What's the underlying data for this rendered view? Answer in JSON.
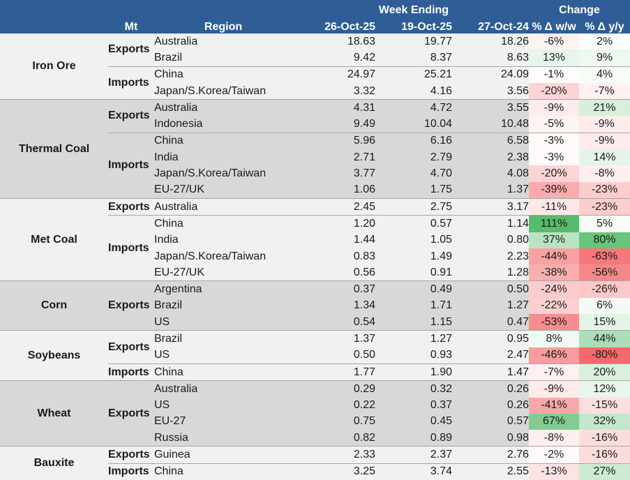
{
  "header": {
    "group_week": "Week Ending",
    "group_change": "Change",
    "unit": "Mt",
    "region": "Region",
    "dates": [
      "26-Oct-25",
      "19-Oct-25",
      "27-Oct-24"
    ],
    "wow": "% Δ w/w",
    "yoy": "% Δ y/y"
  },
  "colors": {
    "header_bg": "#2f5e96",
    "band_light": "#f1f1f1",
    "band_dark": "#d8d8d8",
    "positive_max": "#57bb6b",
    "negative_max": "#f4696b"
  },
  "commodities": [
    {
      "name": "Iron Ore",
      "groups": [
        {
          "direction": "Exports",
          "rows": [
            {
              "region": "Australia",
              "v": [
                "18.63",
                "19.77",
                "18.26"
              ],
              "wow": "-6%",
              "yoy": "2%"
            },
            {
              "region": "Brazil",
              "v": [
                "9.42",
                "8.37",
                "8.63"
              ],
              "wow": "13%",
              "yoy": "9%"
            }
          ]
        },
        {
          "direction": "Imports",
          "rows": [
            {
              "region": "China",
              "v": [
                "24.97",
                "25.21",
                "24.09"
              ],
              "wow": "-1%",
              "yoy": "4%"
            },
            {
              "region": "Japan/S.Korea/Taiwan",
              "v": [
                "3.32",
                "4.16",
                "3.56"
              ],
              "wow": "-20%",
              "yoy": "-7%"
            }
          ]
        }
      ]
    },
    {
      "name": "Thermal Coal",
      "groups": [
        {
          "direction": "Exports",
          "rows": [
            {
              "region": "Australia",
              "v": [
                "4.31",
                "4.72",
                "3.55"
              ],
              "wow": "-9%",
              "yoy": "21%"
            },
            {
              "region": "Indonesia",
              "v": [
                "9.49",
                "10.04",
                "10.48"
              ],
              "wow": "-5%",
              "yoy": "-9%"
            }
          ]
        },
        {
          "direction": "Imports",
          "rows": [
            {
              "region": "China",
              "v": [
                "5.96",
                "6.16",
                "6.58"
              ],
              "wow": "-3%",
              "yoy": "-9%"
            },
            {
              "region": "India",
              "v": [
                "2.71",
                "2.79",
                "2.38"
              ],
              "wow": "-3%",
              "yoy": "14%"
            },
            {
              "region": "Japan/S.Korea/Taiwan",
              "v": [
                "3.77",
                "4.70",
                "4.08"
              ],
              "wow": "-20%",
              "yoy": "-8%"
            },
            {
              "region": "EU-27/UK",
              "v": [
                "1.06",
                "1.75",
                "1.37"
              ],
              "wow": "-39%",
              "yoy": "-23%"
            }
          ]
        }
      ]
    },
    {
      "name": "Met Coal",
      "groups": [
        {
          "direction": "Exports",
          "rows": [
            {
              "region": "Australia",
              "v": [
                "2.45",
                "2.75",
                "3.17"
              ],
              "wow": "-11%",
              "yoy": "-23%"
            }
          ]
        },
        {
          "direction": "Imports",
          "rows": [
            {
              "region": "China",
              "v": [
                "1.20",
                "0.57",
                "1.14"
              ],
              "wow": "111%",
              "yoy": "5%"
            },
            {
              "region": "India",
              "v": [
                "1.44",
                "1.05",
                "0.80"
              ],
              "wow": "37%",
              "yoy": "80%"
            },
            {
              "region": "Japan/S.Korea/Taiwan",
              "v": [
                "0.83",
                "1.49",
                "2.23"
              ],
              "wow": "-44%",
              "yoy": "-63%"
            },
            {
              "region": "EU-27/UK",
              "v": [
                "0.56",
                "0.91",
                "1.28"
              ],
              "wow": "-38%",
              "yoy": "-56%"
            }
          ]
        }
      ]
    },
    {
      "name": "Corn",
      "groups": [
        {
          "direction": "Exports",
          "rows": [
            {
              "region": "Argentina",
              "v": [
                "0.37",
                "0.49",
                "0.50"
              ],
              "wow": "-24%",
              "yoy": "-26%"
            },
            {
              "region": "Brazil",
              "v": [
                "1.34",
                "1.71",
                "1.27"
              ],
              "wow": "-22%",
              "yoy": "6%"
            },
            {
              "region": "US",
              "v": [
                "0.54",
                "1.15",
                "0.47"
              ],
              "wow": "-53%",
              "yoy": "15%"
            }
          ]
        }
      ]
    },
    {
      "name": "Soybeans",
      "groups": [
        {
          "direction": "Exports",
          "rows": [
            {
              "region": "Brazil",
              "v": [
                "1.37",
                "1.27",
                "0.95"
              ],
              "wow": "8%",
              "yoy": "44%"
            },
            {
              "region": "US",
              "v": [
                "0.50",
                "0.93",
                "2.47"
              ],
              "wow": "-46%",
              "yoy": "-80%"
            }
          ]
        },
        {
          "direction": "Imports",
          "rows": [
            {
              "region": "China",
              "v": [
                "1.77",
                "1.90",
                "1.47"
              ],
              "wow": "-7%",
              "yoy": "20%"
            }
          ]
        }
      ]
    },
    {
      "name": "Wheat",
      "groups": [
        {
          "direction": "Exports",
          "rows": [
            {
              "region": "Australia",
              "v": [
                "0.29",
                "0.32",
                "0.26"
              ],
              "wow": "-9%",
              "yoy": "12%"
            },
            {
              "region": "US",
              "v": [
                "0.22",
                "0.37",
                "0.26"
              ],
              "wow": "-41%",
              "yoy": "-15%"
            },
            {
              "region": "EU-27",
              "v": [
                "0.75",
                "0.45",
                "0.57"
              ],
              "wow": "67%",
              "yoy": "32%"
            },
            {
              "region": "Russia",
              "v": [
                "0.82",
                "0.89",
                "0.98"
              ],
              "wow": "-8%",
              "yoy": "-16%"
            }
          ]
        }
      ]
    },
    {
      "name": "Bauxite",
      "groups": [
        {
          "direction": "Exports",
          "rows": [
            {
              "region": "Guinea",
              "v": [
                "2.33",
                "2.37",
                "2.76"
              ],
              "wow": "-2%",
              "yoy": "-16%"
            }
          ]
        },
        {
          "direction": "Imports",
          "rows": [
            {
              "region": "China",
              "v": [
                "3.25",
                "3.74",
                "2.55"
              ],
              "wow": "-13%",
              "yoy": "27%"
            }
          ]
        }
      ]
    }
  ]
}
